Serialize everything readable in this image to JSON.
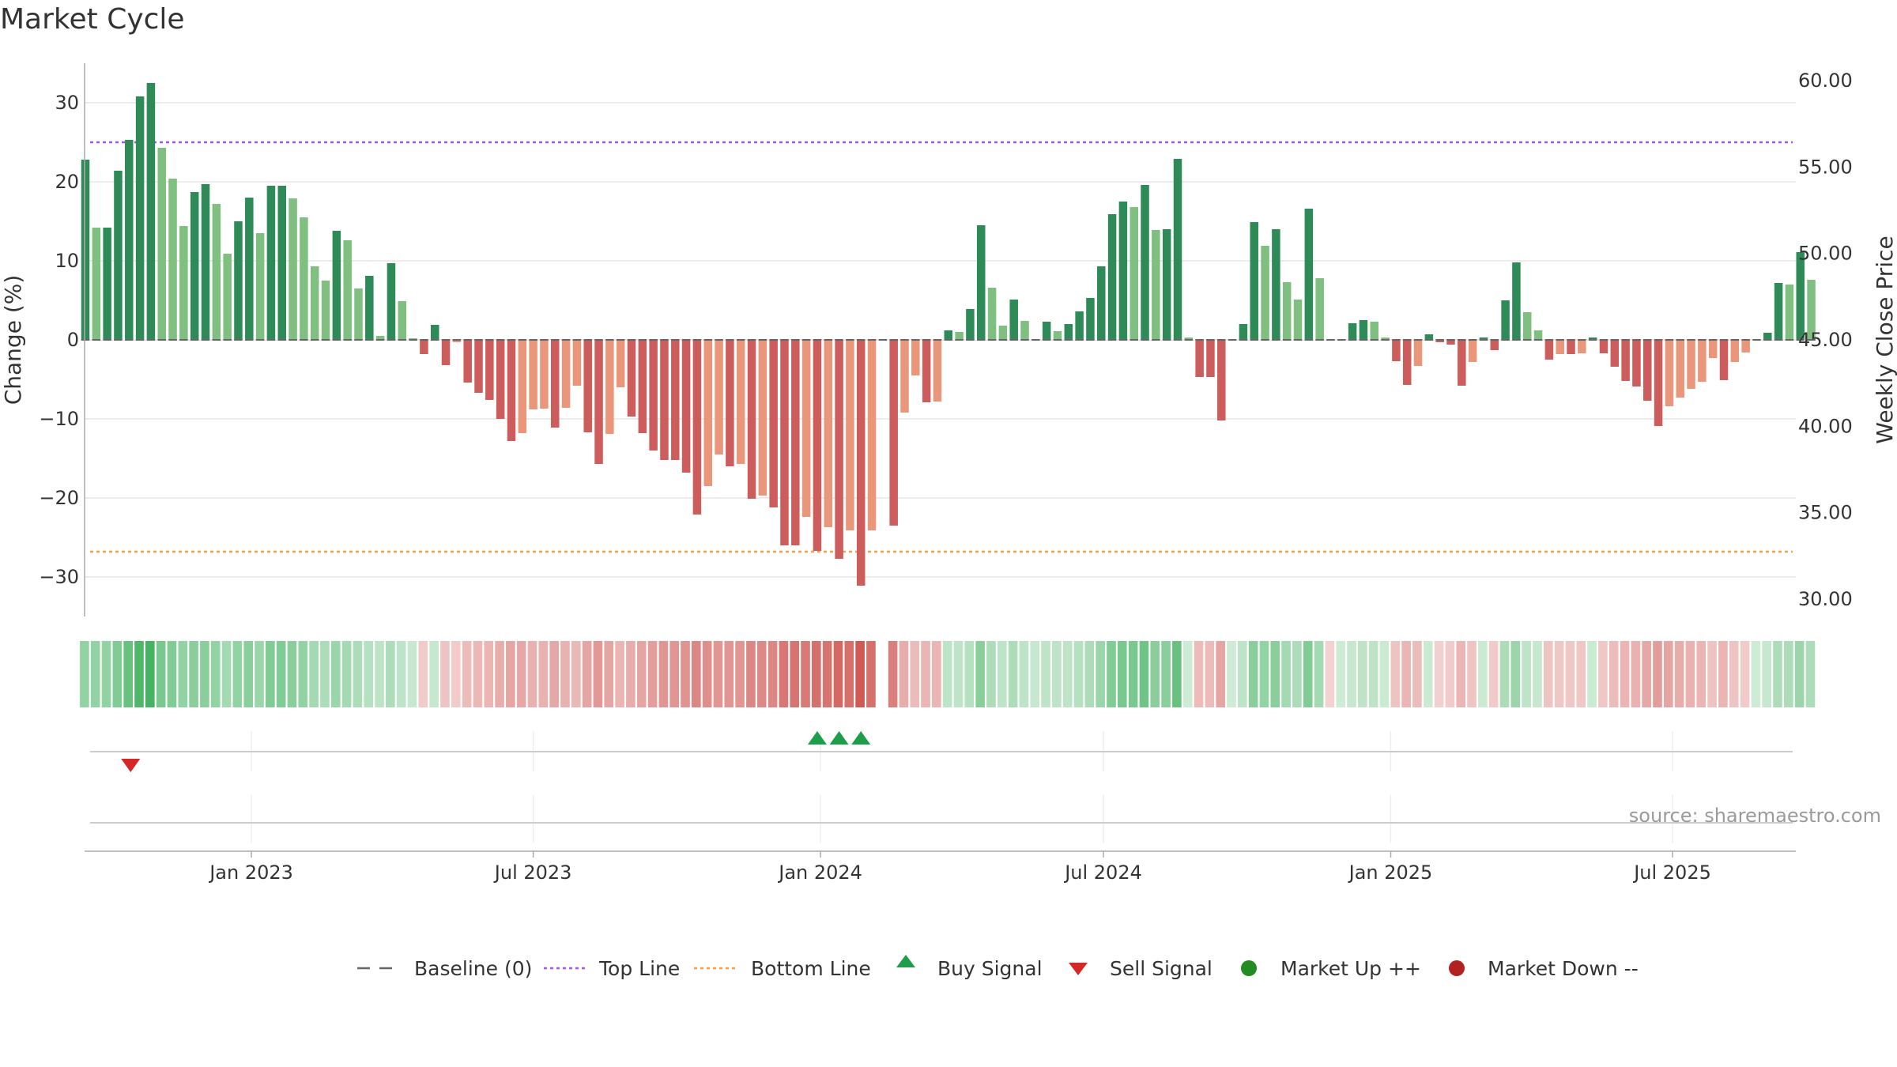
{
  "page": {
    "title": "Market Cycle"
  },
  "chart_data": {
    "type": "bar",
    "title": "Market Cycle",
    "ylabel": "Change (%)",
    "y2label": "Weekly Close Price",
    "ylim": [
      -35,
      36
    ],
    "y2lim": [
      29.75,
      61.0
    ],
    "yticks": [
      30,
      20,
      10,
      0,
      -10,
      -20,
      -30
    ],
    "ytick_labels": [
      "30",
      "20",
      "10",
      "0",
      "−10",
      "−20",
      "−30"
    ],
    "y2ticks": [
      60,
      55,
      50,
      45,
      40,
      35,
      30
    ],
    "y2tick_labels": [
      "60.00",
      "55.00",
      "50.00",
      "45.00",
      "40.00",
      "35.00",
      "30.00"
    ],
    "xticks": [
      {
        "label": "Jan 2023",
        "week": 15.2
      },
      {
        "label": "Jul 2023",
        "week": 41.0
      },
      {
        "label": "Jan 2024",
        "week": 67.3
      },
      {
        "label": "Jul 2024",
        "week": 93.2
      },
      {
        "label": "Jan 2025",
        "week": 119.5
      },
      {
        "label": "Jul 2025",
        "week": 145.3
      }
    ],
    "reference_lines": {
      "baseline": 0,
      "top_line": 25,
      "bottom_line": -26.8
    },
    "colors": {
      "up_strong": "#2e8b57",
      "up_weak": "#7fbf7f",
      "down_strong": "#cd5c5c",
      "down_weak": "#e9967a",
      "top_line": "#a855d8",
      "bottom_line": "#f0a050",
      "baseline": "#666666",
      "buy": "#1e9e4a",
      "sell": "#d62728",
      "market_up": "#228b22",
      "market_down": "#b22222"
    },
    "values": [
      22.8,
      14.2,
      14.2,
      21.4,
      25.3,
      30.8,
      32.5,
      24.3,
      20.4,
      14.4,
      18.7,
      19.7,
      17.2,
      10.9,
      15.0,
      18.0,
      13.5,
      19.5,
      19.5,
      17.9,
      15.5,
      9.3,
      7.5,
      13.8,
      12.6,
      6.5,
      8.1,
      0.5,
      9.7,
      4.9,
      0.2,
      -1.8,
      1.9,
      -3.2,
      -0.3,
      -5.4,
      -6.7,
      -7.6,
      -10.0,
      -12.8,
      -11.8,
      -8.8,
      -8.7,
      -11.1,
      -8.6,
      -5.8,
      -11.7,
      -15.7,
      -11.9,
      -6.0,
      -9.7,
      -11.8,
      -14.0,
      -15.2,
      -15.2,
      -16.8,
      -22.1,
      -18.5,
      -14.5,
      -16.0,
      -15.7,
      -20.1,
      -19.7,
      -21.2,
      -26.0,
      -26.0,
      -22.4,
      -26.7,
      -23.7,
      -27.7,
      -24.1,
      -31.1,
      -24.1,
      0.0,
      -23.5,
      -9.2,
      -4.5,
      -7.9,
      -7.8,
      1.2,
      1.0,
      3.9,
      14.5,
      6.6,
      1.8,
      5.1,
      2.4,
      0.1,
      2.3,
      1.1,
      2.0,
      3.6,
      5.3,
      9.3,
      15.9,
      17.5,
      16.8,
      19.6,
      13.9,
      14.0,
      22.9,
      0.3,
      -4.7,
      -4.7,
      -10.2,
      0.1,
      2.0,
      14.9,
      11.9,
      14.0,
      7.3,
      5.1,
      16.6,
      7.8,
      -0.1,
      0.0,
      2.1,
      2.5,
      2.3,
      0.3,
      -2.7,
      -5.7,
      -3.3,
      0.7,
      -0.3,
      -0.6,
      -5.8,
      -2.8,
      0.3,
      -1.3,
      5.0,
      9.8,
      3.5,
      1.2,
      -2.5,
      -1.8,
      -1.8,
      -1.7,
      0.3,
      -1.7,
      -3.4,
      -5.2,
      -5.9,
      -7.7,
      -10.9,
      -8.4,
      -7.3,
      -6.2,
      -5.3,
      -2.3,
      -5.1,
      -2.8,
      -1.6,
      0.0,
      0.9,
      7.2,
      7.0,
      11.1,
      7.6
    ],
    "momentum_shades": [
      0.45,
      0.45,
      0.45,
      0.55,
      0.7,
      0.85,
      0.9,
      0.6,
      0.55,
      0.45,
      0.5,
      0.5,
      0.45,
      0.35,
      0.45,
      0.5,
      0.4,
      0.55,
      0.55,
      0.5,
      0.45,
      0.35,
      0.3,
      0.4,
      0.35,
      0.3,
      0.25,
      0.2,
      0.3,
      0.2,
      0.15,
      0.15,
      0.15,
      0.2,
      0.15,
      0.25,
      0.28,
      0.3,
      0.35,
      0.4,
      0.38,
      0.32,
      0.32,
      0.38,
      0.32,
      0.28,
      0.4,
      0.48,
      0.4,
      0.3,
      0.35,
      0.4,
      0.45,
      0.5,
      0.5,
      0.52,
      0.6,
      0.55,
      0.5,
      0.5,
      0.5,
      0.6,
      0.58,
      0.6,
      0.7,
      0.72,
      0.68,
      0.75,
      0.72,
      0.8,
      0.75,
      0.9,
      0.75,
      0.0,
      0.65,
      0.35,
      0.25,
      0.3,
      0.3,
      0.2,
      0.2,
      0.25,
      0.5,
      0.3,
      0.2,
      0.3,
      0.2,
      0.15,
      0.2,
      0.2,
      0.2,
      0.25,
      0.3,
      0.4,
      0.55,
      0.6,
      0.6,
      0.65,
      0.5,
      0.5,
      0.7,
      0.1,
      0.25,
      0.25,
      0.4,
      0.1,
      0.2,
      0.5,
      0.45,
      0.5,
      0.35,
      0.3,
      0.55,
      0.35,
      0.1,
      0.1,
      0.15,
      0.2,
      0.2,
      0.12,
      0.2,
      0.3,
      0.25,
      0.12,
      0.12,
      0.15,
      0.3,
      0.2,
      0.12,
      0.15,
      0.3,
      0.4,
      0.2,
      0.15,
      0.2,
      0.18,
      0.18,
      0.18,
      0.12,
      0.18,
      0.25,
      0.3,
      0.32,
      0.38,
      0.45,
      0.4,
      0.35,
      0.32,
      0.3,
      0.2,
      0.3,
      0.2,
      0.15,
      0.1,
      0.15,
      0.3,
      0.3,
      0.4,
      0.3
    ],
    "buy_signals": [
      67,
      69,
      71
    ],
    "sell_signals": [
      4
    ],
    "legend": [
      {
        "key": "baseline",
        "label": "Baseline (0)"
      },
      {
        "key": "top_line",
        "label": "Top Line"
      },
      {
        "key": "bottom_line",
        "label": "Bottom Line"
      },
      {
        "key": "buy",
        "label": "Buy Signal"
      },
      {
        "key": "sell",
        "label": "Sell Signal"
      },
      {
        "key": "market_up",
        "label": "Market Up ++"
      },
      {
        "key": "market_down",
        "label": "Market Down --"
      }
    ],
    "legend_position": "bottom-center",
    "source": "source: sharemaestro.com"
  }
}
